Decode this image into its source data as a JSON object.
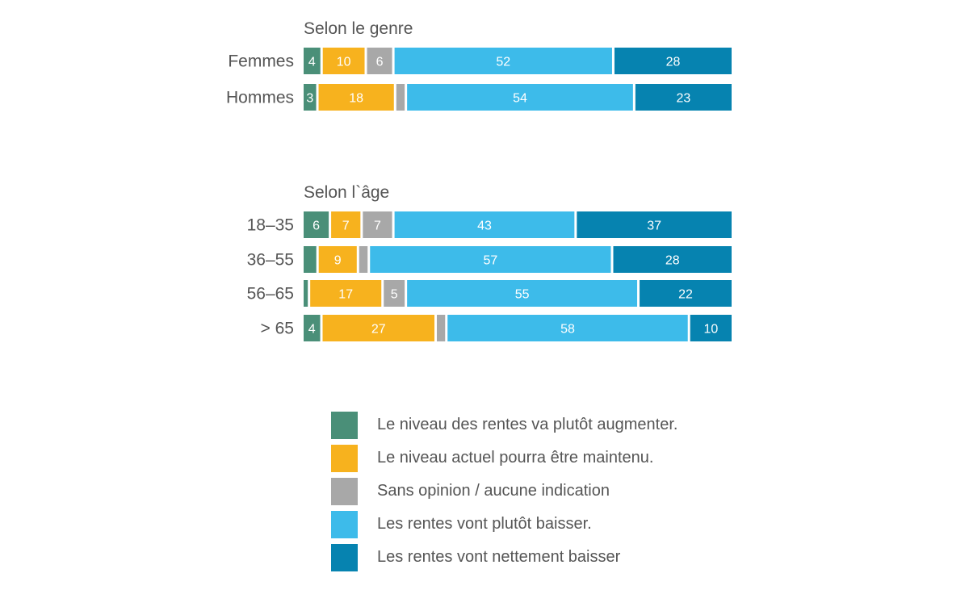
{
  "chart_data": {
    "type": "bar",
    "orientation": "horizontal",
    "stacked": true,
    "xlim": [
      0,
      100
    ],
    "grid": false,
    "legend_position": "bottom",
    "series": [
      {
        "name": "Le niveau des rentes va plutôt augmenter.",
        "color": "#4a8f78"
      },
      {
        "name": "Le niveau actuel pourra être maintenu.",
        "color": "#f7b21e"
      },
      {
        "name": "Sans opinion / aucune indication",
        "color": "#a8a8a8"
      },
      {
        "name": "Les rentes vont plutôt baisser.",
        "color": "#3dbbea"
      },
      {
        "name": "Les rentes vont nettement baisser",
        "color": "#0683b0"
      }
    ],
    "groups": [
      {
        "title": "Selon le genre",
        "rows": [
          {
            "category": "Femmes",
            "values": [
              4,
              10,
              6,
              52,
              28
            ],
            "labels": [
              "4",
              "10",
              "6",
              "52",
              "28"
            ]
          },
          {
            "category": "Hommes",
            "values": [
              3,
              18,
              2,
              54,
              23
            ],
            "labels": [
              "3",
              "18",
              "",
              "54",
              "23"
            ]
          }
        ]
      },
      {
        "title": "Selon l`âge",
        "rows": [
          {
            "category": "18–35",
            "values": [
              6,
              7,
              7,
              43,
              37
            ],
            "labels": [
              "6",
              "7",
              "7",
              "43",
              "37"
            ]
          },
          {
            "category": "36–55",
            "values": [
              3,
              9,
              2,
              57,
              28
            ],
            "labels": [
              "",
              "9",
              "",
              "57",
              "28"
            ]
          },
          {
            "category": "56–65",
            "values": [
              1,
              17,
              5,
              55,
              22
            ],
            "labels": [
              "",
              "17",
              "5",
              "55",
              "22"
            ]
          },
          {
            "category": "> 65",
            "values": [
              4,
              27,
              2,
              58,
              10
            ],
            "labels": [
              "4",
              "27",
              "",
              "58",
              "10"
            ]
          }
        ]
      }
    ]
  }
}
